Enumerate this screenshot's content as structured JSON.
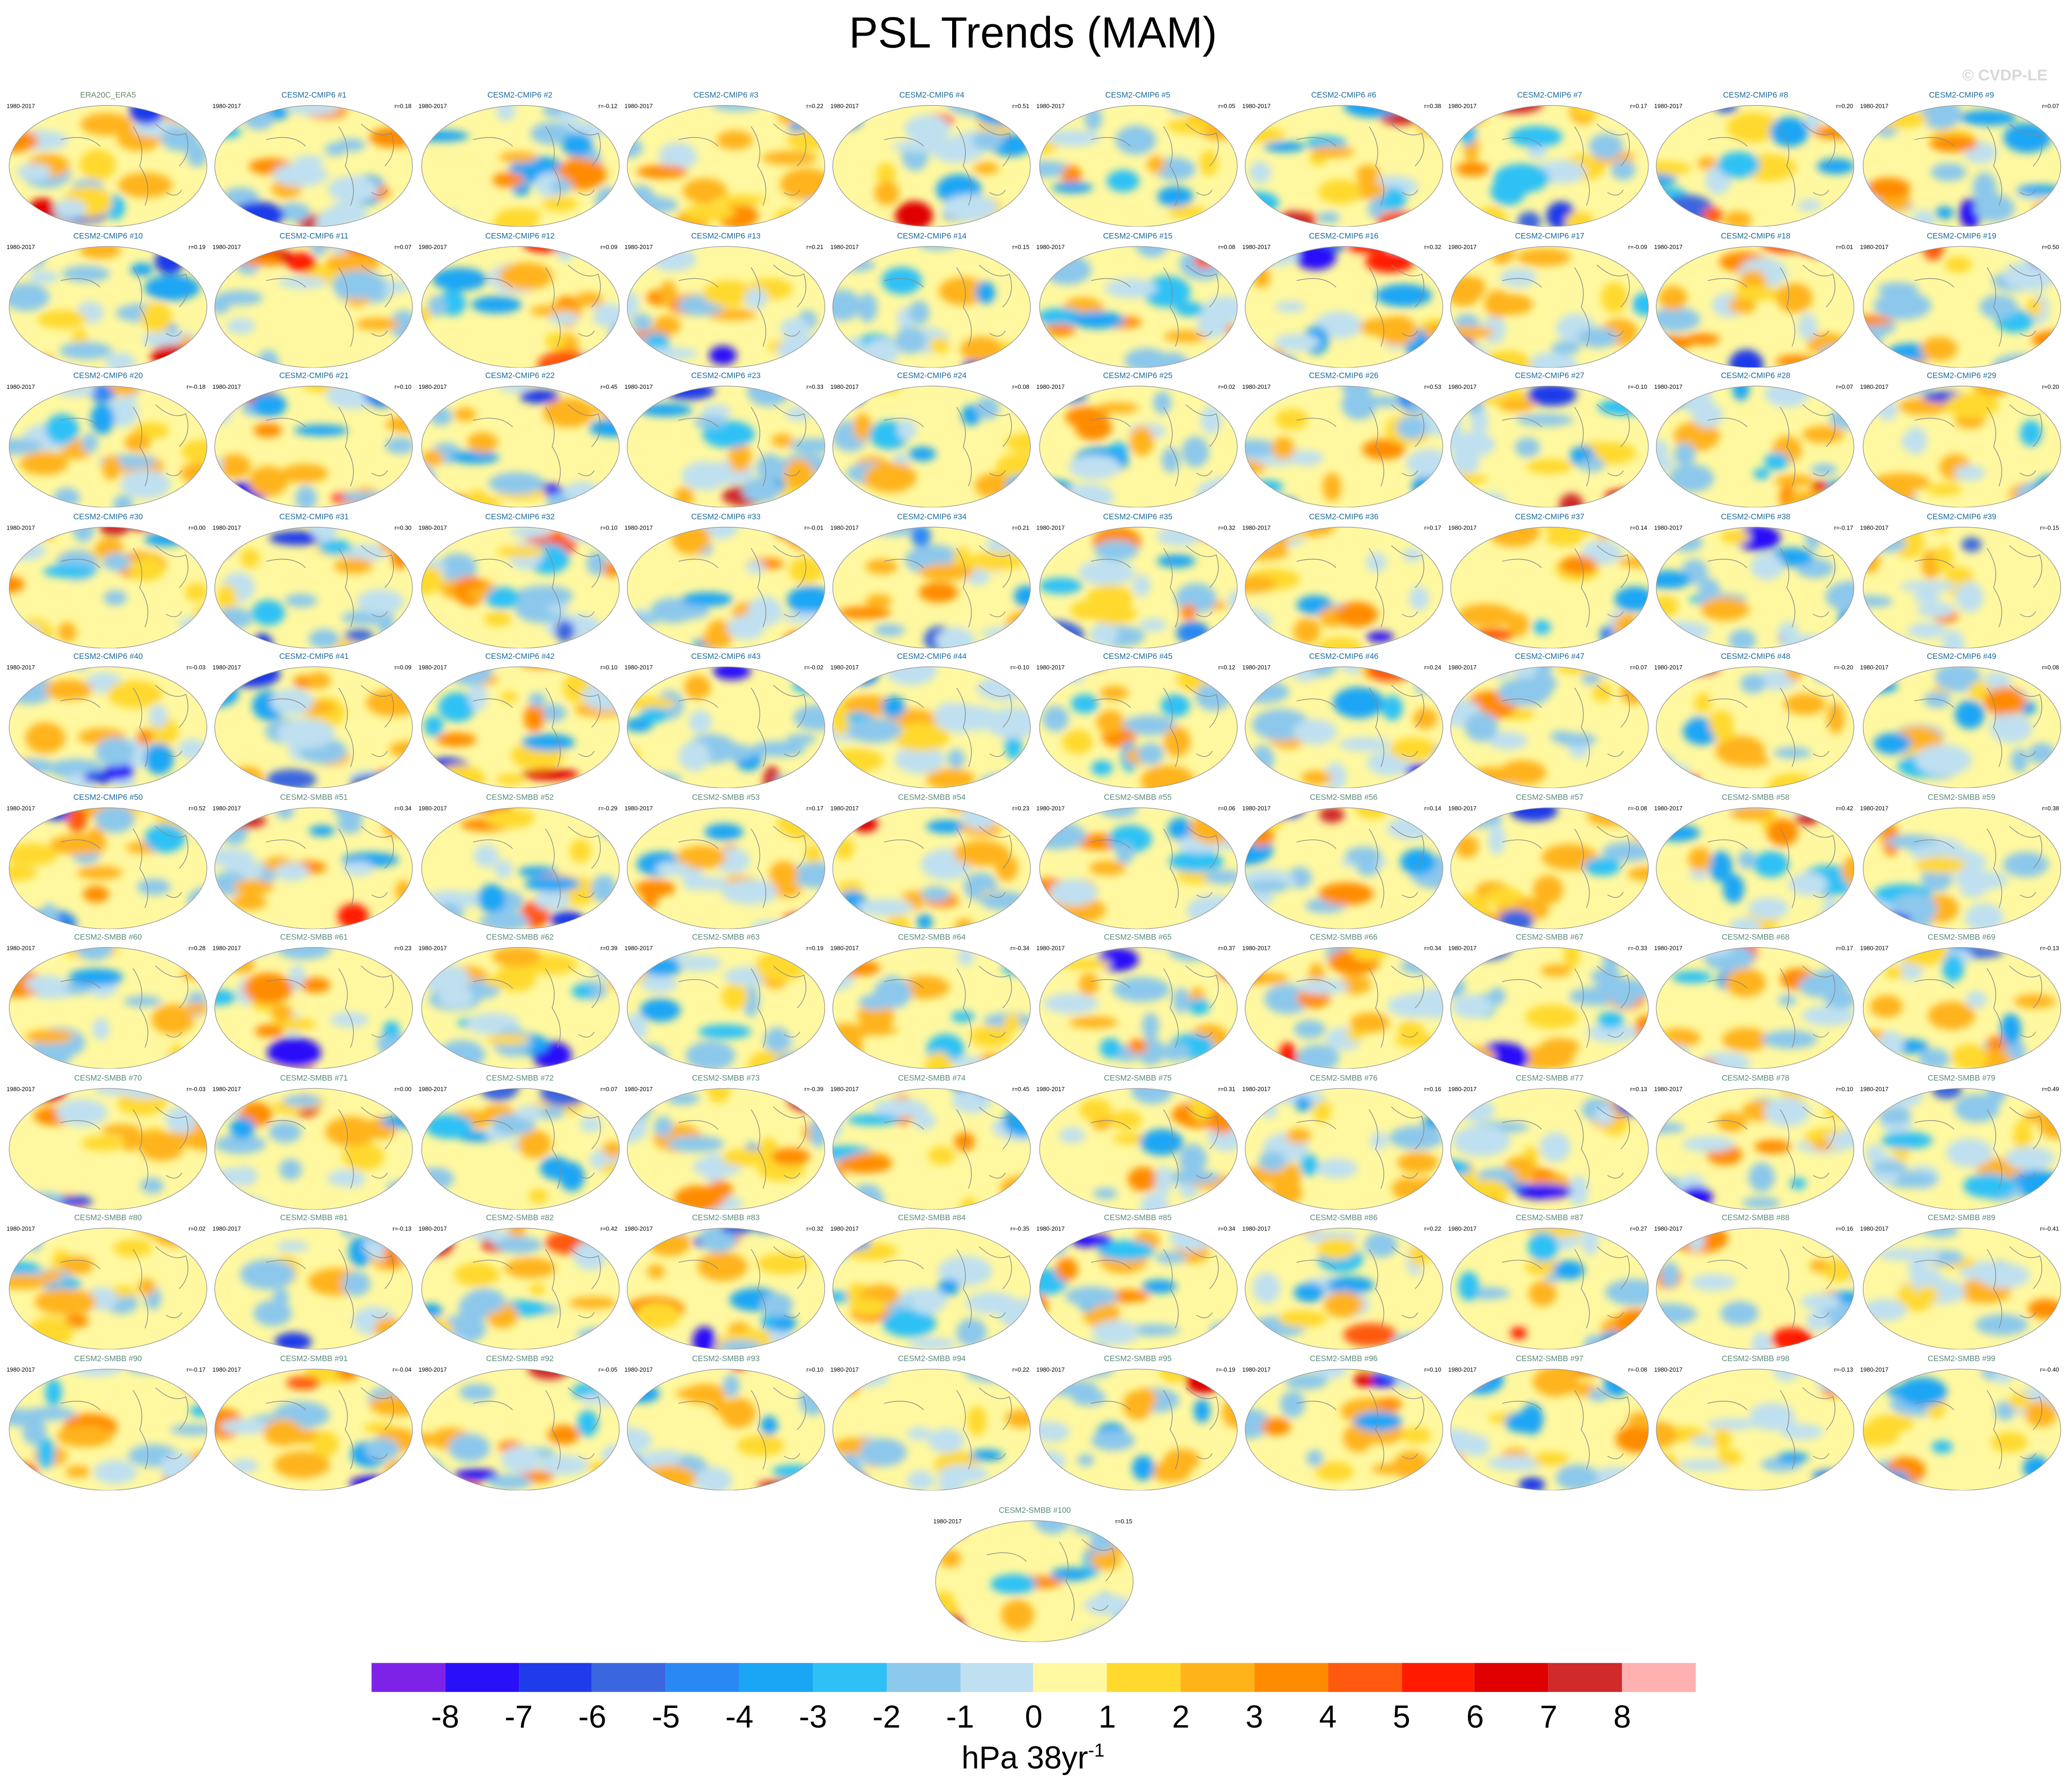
{
  "title": "PSL Trends (MAM)",
  "credit": "© CVDP-LE",
  "chart_data": {
    "type": "heatmap",
    "title": "PSL Trends (MAM)",
    "period": "1980-2017",
    "panels": [
      {
        "name": "ERA20C_ERA5",
        "r": null
      },
      {
        "name": "CESM2-CMIP6 #1",
        "r": "r=0.18"
      },
      {
        "name": "CESM2-CMIP6 #2",
        "r": "r=-0.12"
      },
      {
        "name": "CESM2-CMIP6 #3",
        "r": "r=0.22"
      },
      {
        "name": "CESM2-CMIP6 #4",
        "r": "r=0.51"
      },
      {
        "name": "CESM2-CMIP6 #5",
        "r": "r=0.05"
      },
      {
        "name": "CESM2-CMIP6 #6",
        "r": "r=0.38"
      },
      {
        "name": "CESM2-CMIP6 #7",
        "r": "r=0.17"
      },
      {
        "name": "CESM2-CMIP6 #8",
        "r": "r=0.20"
      },
      {
        "name": "CESM2-CMIP6 #9",
        "r": "r=0.07"
      },
      {
        "name": "CESM2-CMIP6 #10",
        "r": "r=0.19"
      },
      {
        "name": "CESM2-CMIP6 #11",
        "r": "r=0.07"
      },
      {
        "name": "CESM2-CMIP6 #12",
        "r": "r=0.09"
      },
      {
        "name": "CESM2-CMIP6 #13",
        "r": "r=0.21"
      },
      {
        "name": "CESM2-CMIP6 #14",
        "r": "r=0.15"
      },
      {
        "name": "CESM2-CMIP6 #15",
        "r": "r=0.08"
      },
      {
        "name": "CESM2-CMIP6 #16",
        "r": "r=0.32"
      },
      {
        "name": "CESM2-CMIP6 #17",
        "r": "r=-0.09"
      },
      {
        "name": "CESM2-CMIP6 #18",
        "r": "r=0.01"
      },
      {
        "name": "CESM2-CMIP6 #19",
        "r": "r=0.50"
      },
      {
        "name": "CESM2-CMIP6 #20",
        "r": "r=-0.18"
      },
      {
        "name": "CESM2-CMIP6 #21",
        "r": "r=0.10"
      },
      {
        "name": "CESM2-CMIP6 #22",
        "r": "r=0.45"
      },
      {
        "name": "CESM2-CMIP6 #23",
        "r": "r=0.33"
      },
      {
        "name": "CESM2-CMIP6 #24",
        "r": "r=0.08"
      },
      {
        "name": "CESM2-CMIP6 #25",
        "r": "r=0.02"
      },
      {
        "name": "CESM2-CMIP6 #26",
        "r": "r=0.53"
      },
      {
        "name": "CESM2-CMIP6 #27",
        "r": "r=-0.10"
      },
      {
        "name": "CESM2-CMIP6 #28",
        "r": "r=0.07"
      },
      {
        "name": "CESM2-CMIP6 #29",
        "r": "r=0.20"
      },
      {
        "name": "CESM2-CMIP6 #30",
        "r": "r=0.00"
      },
      {
        "name": "CESM2-CMIP6 #31",
        "r": "r=0.30"
      },
      {
        "name": "CESM2-CMIP6 #32",
        "r": "r=0.10"
      },
      {
        "name": "CESM2-CMIP6 #33",
        "r": "r=-0.01"
      },
      {
        "name": "CESM2-CMIP6 #34",
        "r": "r=0.21"
      },
      {
        "name": "CESM2-CMIP6 #35",
        "r": "r=0.32"
      },
      {
        "name": "CESM2-CMIP6 #36",
        "r": "r=0.17"
      },
      {
        "name": "CESM2-CMIP6 #37",
        "r": "r=0.14"
      },
      {
        "name": "CESM2-CMIP6 #38",
        "r": "r=-0.17"
      },
      {
        "name": "CESM2-CMIP6 #39",
        "r": "r=-0.15"
      },
      {
        "name": "CESM2-CMIP6 #40",
        "r": "r=-0.03"
      },
      {
        "name": "CESM2-CMIP6 #41",
        "r": "r=0.09"
      },
      {
        "name": "CESM2-CMIP6 #42",
        "r": "r=0.10"
      },
      {
        "name": "CESM2-CMIP6 #43",
        "r": "r=-0.02"
      },
      {
        "name": "CESM2-CMIP6 #44",
        "r": "r=-0.10"
      },
      {
        "name": "CESM2-CMIP6 #45",
        "r": "r=0.12"
      },
      {
        "name": "CESM2-CMIP6 #46",
        "r": "r=0.24"
      },
      {
        "name": "CESM2-CMIP6 #47",
        "r": "r=0.07"
      },
      {
        "name": "CESM2-CMIP6 #48",
        "r": "r=-0.20"
      },
      {
        "name": "CESM2-CMIP6 #49",
        "r": "r=0.08"
      },
      {
        "name": "CESM2-CMIP6 #50",
        "r": "r=0.52"
      },
      {
        "name": "CESM2-SMBB #51",
        "r": "r=0.34"
      },
      {
        "name": "CESM2-SMBB #52",
        "r": "r=-0.29"
      },
      {
        "name": "CESM2-SMBB #53",
        "r": "r=0.17"
      },
      {
        "name": "CESM2-SMBB #54",
        "r": "r=0.23"
      },
      {
        "name": "CESM2-SMBB #55",
        "r": "r=0.06"
      },
      {
        "name": "CESM2-SMBB #56",
        "r": "r=0.14"
      },
      {
        "name": "CESM2-SMBB #57",
        "r": "r=-0.08"
      },
      {
        "name": "CESM2-SMBB #58",
        "r": "r=0.42"
      },
      {
        "name": "CESM2-SMBB #59",
        "r": "r=0.38"
      },
      {
        "name": "CESM2-SMBB #60",
        "r": "r=0.28"
      },
      {
        "name": "CESM2-SMBB #61",
        "r": "r=0.23"
      },
      {
        "name": "CESM2-SMBB #62",
        "r": "r=0.39"
      },
      {
        "name": "CESM2-SMBB #63",
        "r": "r=0.19"
      },
      {
        "name": "CESM2-SMBB #64",
        "r": "r=-0.34"
      },
      {
        "name": "CESM2-SMBB #65",
        "r": "r=0.37"
      },
      {
        "name": "CESM2-SMBB #66",
        "r": "r=0.34"
      },
      {
        "name": "CESM2-SMBB #67",
        "r": "r=-0.33"
      },
      {
        "name": "CESM2-SMBB #68",
        "r": "r=0.17"
      },
      {
        "name": "CESM2-SMBB #69",
        "r": "r=-0.13"
      },
      {
        "name": "CESM2-SMBB #70",
        "r": "r=-0.03"
      },
      {
        "name": "CESM2-SMBB #71",
        "r": "r=0.00"
      },
      {
        "name": "CESM2-SMBB #72",
        "r": "r=0.07"
      },
      {
        "name": "CESM2-SMBB #73",
        "r": "r=-0.39"
      },
      {
        "name": "CESM2-SMBB #74",
        "r": "r=0.45"
      },
      {
        "name": "CESM2-SMBB #75",
        "r": "r=0.31"
      },
      {
        "name": "CESM2-SMBB #76",
        "r": "r=0.16"
      },
      {
        "name": "CESM2-SMBB #77",
        "r": "r=0.13"
      },
      {
        "name": "CESM2-SMBB #78",
        "r": "r=0.10"
      },
      {
        "name": "CESM2-SMBB #79",
        "r": "r=0.49"
      },
      {
        "name": "CESM2-SMBB #80",
        "r": "r=0.02"
      },
      {
        "name": "CESM2-SMBB #81",
        "r": "r=-0.13"
      },
      {
        "name": "CESM2-SMBB #82",
        "r": "r=0.42"
      },
      {
        "name": "CESM2-SMBB #83",
        "r": "r=0.32"
      },
      {
        "name": "CESM2-SMBB #84",
        "r": "r=-0.35"
      },
      {
        "name": "CESM2-SMBB #85",
        "r": "r=0.34"
      },
      {
        "name": "CESM2-SMBB #86",
        "r": "r=0.22"
      },
      {
        "name": "CESM2-SMBB #87",
        "r": "r=0.27"
      },
      {
        "name": "CESM2-SMBB #88",
        "r": "r=0.16"
      },
      {
        "name": "CESM2-SMBB #89",
        "r": "r=-0.41"
      },
      {
        "name": "CESM2-SMBB #90",
        "r": "r=-0.17"
      },
      {
        "name": "CESM2-SMBB #91",
        "r": "r=-0.04"
      },
      {
        "name": "CESM2-SMBB #92",
        "r": "r=-0.05"
      },
      {
        "name": "CESM2-SMBB #93",
        "r": "r=0.10"
      },
      {
        "name": "CESM2-SMBB #94",
        "r": "r=0.22"
      },
      {
        "name": "CESM2-SMBB #95",
        "r": "r=-0.19"
      },
      {
        "name": "CESM2-SMBB #96",
        "r": "r=0.10"
      },
      {
        "name": "CESM2-SMBB #97",
        "r": "r=-0.08"
      },
      {
        "name": "CESM2-SMBB #98",
        "r": "r=-0.13"
      },
      {
        "name": "CESM2-SMBB #99",
        "r": "r=-0.40"
      },
      {
        "name": "CESM2-SMBB #100",
        "r": "r=0.15"
      }
    ],
    "colorbar": {
      "ticks": [
        "-8",
        "-7",
        "-6",
        "-5",
        "-4",
        "-3",
        "-2",
        "-1",
        "0",
        "1",
        "2",
        "3",
        "4",
        "5",
        "6",
        "7",
        "8"
      ],
      "colors": [
        "#7f22e8",
        "#2a10f8",
        "#1f3bea",
        "#3a66e0",
        "#2a88f5",
        "#1aa6f5",
        "#2fc1f5",
        "#8cc8ec",
        "#bfe0f0",
        "#fff8a0",
        "#ffd92e",
        "#ffb31a",
        "#ff8c00",
        "#ff5a10",
        "#ff1a00",
        "#e00000",
        "#d02a2a",
        "#ffb0b0"
      ],
      "unit": "hPa 38yr",
      "unit_exp": "-1"
    },
    "label_colors": {
      "obs": "#6a8a6a",
      "CMIP6": "#1a6a9a",
      "SMBB": "#5a8a7a"
    }
  }
}
